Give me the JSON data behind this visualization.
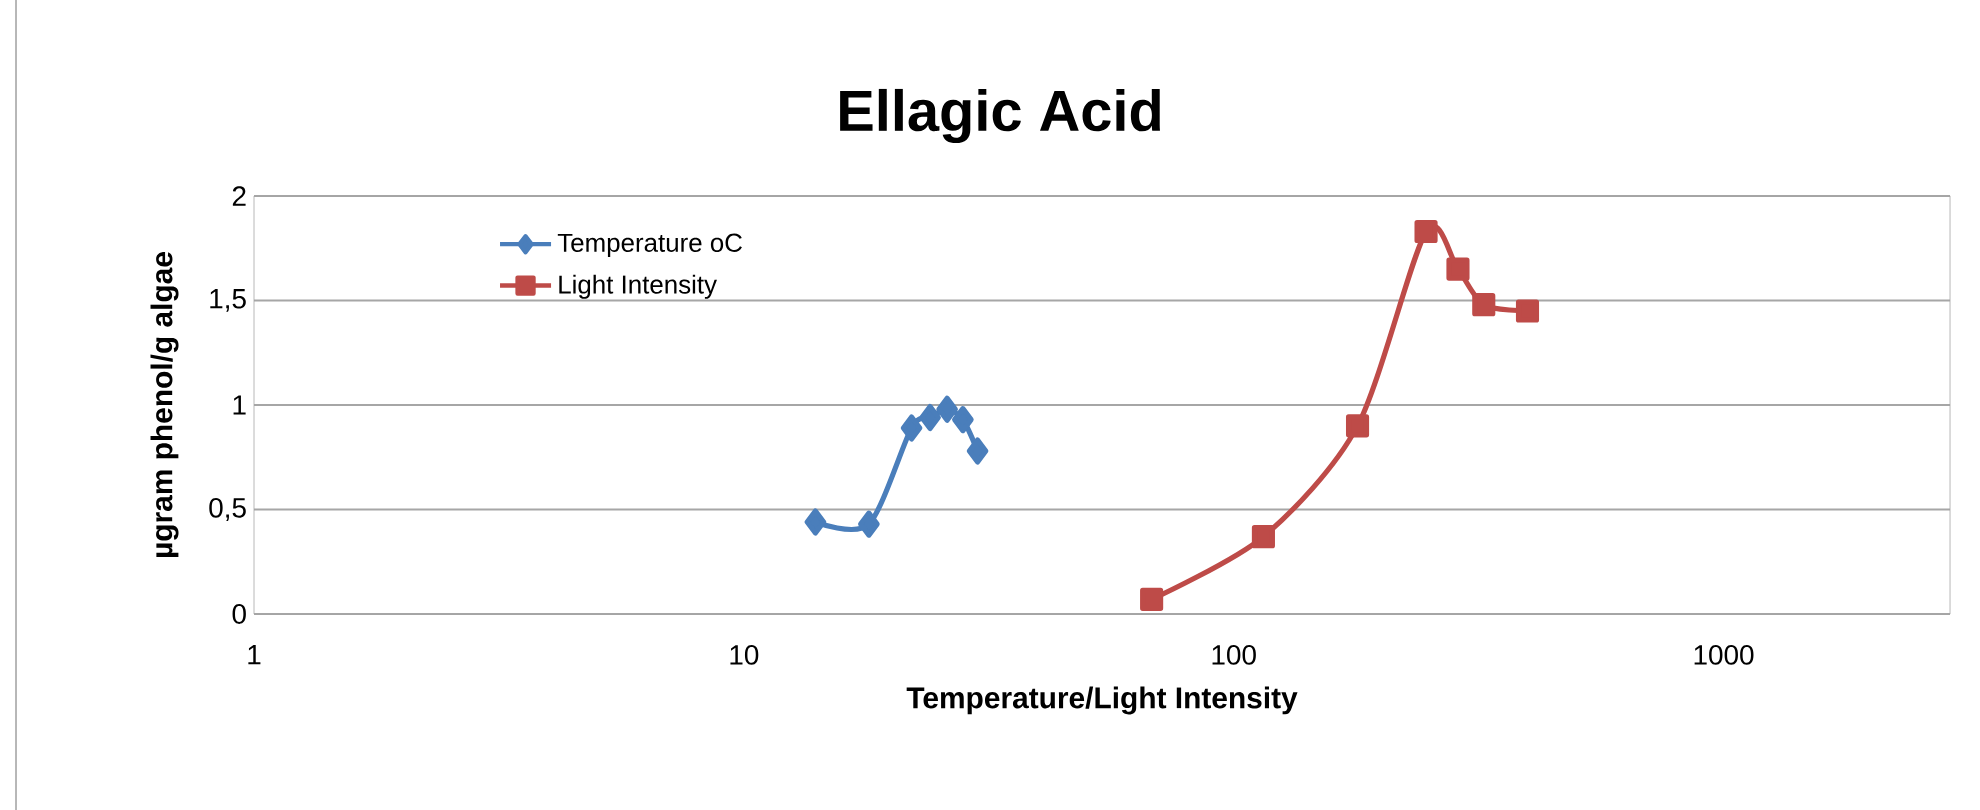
{
  "chart_data": {
    "type": "line",
    "title": "Ellagic Acid",
    "xlabel": "Temperature/Light Intensity",
    "ylabel": "µgram phenol/g algae",
    "log": "x",
    "xlim": [
      1,
      2900
    ],
    "xticks": [
      1,
      10,
      100,
      1000
    ],
    "ylim": [
      0,
      2
    ],
    "yticks": [
      0,
      {
        "value": 0.5,
        "label": "0,5"
      },
      1,
      {
        "value": 1.5,
        "label": "1,5"
      },
      2
    ],
    "grid": "y",
    "legend": "top left",
    "series": [
      {
        "name": "Temperature oC",
        "color": "#4a7ebb",
        "marker": "diamond",
        "x": [
          14,
          18,
          22,
          24,
          26,
          28,
          30
        ],
        "values": [
          0.44,
          0.43,
          0.89,
          0.94,
          0.98,
          0.93,
          0.78
        ]
      },
      {
        "name": "Light Intensity",
        "color": "#be4b48",
        "marker": "square",
        "x": [
          68,
          115,
          179,
          247,
          287,
          324,
          398
        ],
        "values": [
          0.07,
          0.37,
          0.9,
          1.83,
          1.65,
          1.48,
          1.45
        ]
      }
    ]
  }
}
